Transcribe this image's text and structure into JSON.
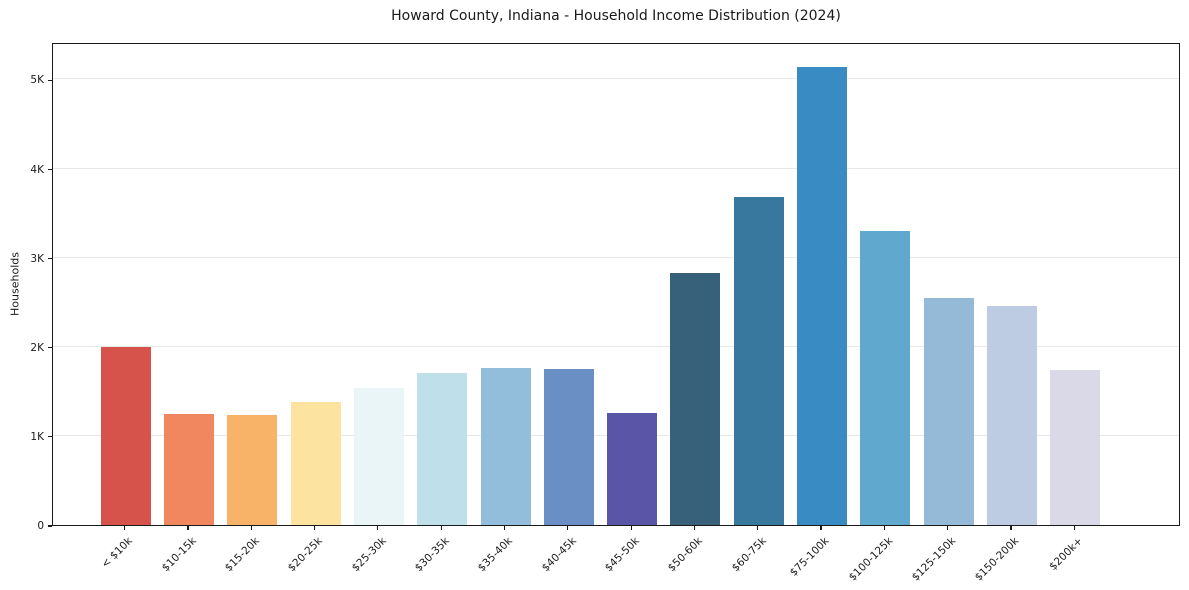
{
  "chart_data": {
    "type": "bar",
    "title": "Howard County, Indiana - Household Income Distribution (2024)",
    "xlabel": "",
    "ylabel": "Households",
    "categories": [
      "< $10k",
      "$10-15k",
      "$15-20k",
      "$20-25k",
      "$25-30k",
      "$30-35k",
      "$35-40k",
      "$40-45k",
      "$45-50k",
      "$50-60k",
      "$60-75k",
      "$75-100k",
      "$100-125k",
      "$125-150k",
      "$150-200k",
      "$200k+"
    ],
    "values": [
      1995,
      1250,
      1230,
      1380,
      1540,
      1710,
      1765,
      1755,
      1255,
      2825,
      3680,
      5140,
      3300,
      2550,
      2460,
      1735
    ],
    "bar_colors": [
      "#d6534c",
      "#f0875f",
      "#f8b369",
      "#fce3a0",
      "#e9f5f7",
      "#bfe0eb",
      "#92bedc",
      "#6a8fc5",
      "#5a55a6",
      "#37607a",
      "#38789f",
      "#398bc4",
      "#60a8ce",
      "#94bad8",
      "#bdcbe3",
      "#d9d9e7"
    ],
    "yticks": [
      {
        "value": 0,
        "label": "0"
      },
      {
        "value": 1000,
        "label": "1K"
      },
      {
        "value": 2000,
        "label": "2K"
      },
      {
        "value": 3000,
        "label": "3K"
      },
      {
        "value": 4000,
        "label": "4K"
      },
      {
        "value": 5000,
        "label": "5K"
      }
    ],
    "ylim": [
      0,
      5420
    ],
    "grid": "horizontal-major",
    "legend": "none"
  }
}
